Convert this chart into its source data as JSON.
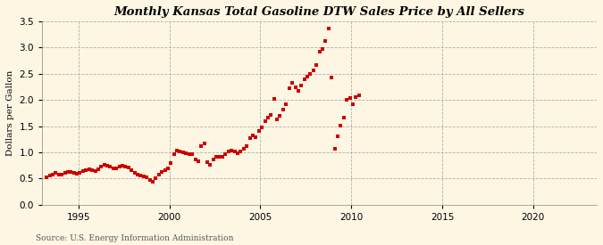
{
  "title": "Monthly Kansas Total Gasoline DTW Sales Price by All Sellers",
  "ylabel": "Dollars per Gallon",
  "source": "Source: U.S. Energy Information Administration",
  "background_color": "#fdf6e3",
  "plot_bg_color": "#fdf6e3",
  "dot_color": "#cc0000",
  "xlim": [
    1993.0,
    2023.5
  ],
  "ylim": [
    0.0,
    3.5
  ],
  "yticks": [
    0.0,
    0.5,
    1.0,
    1.5,
    2.0,
    2.5,
    3.0,
    3.5
  ],
  "xticks": [
    1995,
    2000,
    2005,
    2010,
    2015,
    2020
  ],
  "data": [
    [
      1993.25,
      0.52
    ],
    [
      1993.42,
      0.56
    ],
    [
      1993.58,
      0.58
    ],
    [
      1993.75,
      0.6
    ],
    [
      1993.92,
      0.58
    ],
    [
      1994.08,
      0.57
    ],
    [
      1994.25,
      0.6
    ],
    [
      1994.42,
      0.63
    ],
    [
      1994.58,
      0.62
    ],
    [
      1994.75,
      0.6
    ],
    [
      1994.92,
      0.59
    ],
    [
      1995.08,
      0.61
    ],
    [
      1995.25,
      0.64
    ],
    [
      1995.42,
      0.66
    ],
    [
      1995.58,
      0.68
    ],
    [
      1995.75,
      0.66
    ],
    [
      1995.92,
      0.64
    ],
    [
      1996.08,
      0.67
    ],
    [
      1996.25,
      0.73
    ],
    [
      1996.42,
      0.76
    ],
    [
      1996.58,
      0.74
    ],
    [
      1996.75,
      0.73
    ],
    [
      1996.92,
      0.69
    ],
    [
      1997.08,
      0.69
    ],
    [
      1997.25,
      0.73
    ],
    [
      1997.42,
      0.74
    ],
    [
      1997.58,
      0.73
    ],
    [
      1997.75,
      0.71
    ],
    [
      1997.92,
      0.66
    ],
    [
      1998.08,
      0.61
    ],
    [
      1998.25,
      0.58
    ],
    [
      1998.42,
      0.56
    ],
    [
      1998.58,
      0.54
    ],
    [
      1998.75,
      0.52
    ],
    [
      1998.92,
      0.48
    ],
    [
      1999.08,
      0.44
    ],
    [
      1999.25,
      0.5
    ],
    [
      1999.42,
      0.58
    ],
    [
      1999.58,
      0.62
    ],
    [
      1999.75,
      0.66
    ],
    [
      1999.92,
      0.7
    ],
    [
      2000.08,
      0.8
    ],
    [
      2000.25,
      0.97
    ],
    [
      2000.42,
      1.03
    ],
    [
      2000.58,
      1.01
    ],
    [
      2000.75,
      1.0
    ],
    [
      2000.92,
      0.99
    ],
    [
      2001.08,
      0.96
    ],
    [
      2001.25,
      0.96
    ],
    [
      2001.42,
      0.86
    ],
    [
      2001.58,
      0.83
    ],
    [
      2001.75,
      1.12
    ],
    [
      2001.92,
      1.17
    ],
    [
      2002.08,
      0.82
    ],
    [
      2002.25,
      0.76
    ],
    [
      2002.42,
      0.86
    ],
    [
      2002.58,
      0.91
    ],
    [
      2002.75,
      0.91
    ],
    [
      2002.92,
      0.91
    ],
    [
      2003.08,
      0.96
    ],
    [
      2003.25,
      1.01
    ],
    [
      2003.42,
      1.03
    ],
    [
      2003.58,
      1.01
    ],
    [
      2003.75,
      0.99
    ],
    [
      2003.92,
      1.01
    ],
    [
      2004.08,
      1.06
    ],
    [
      2004.25,
      1.12
    ],
    [
      2004.42,
      1.27
    ],
    [
      2004.58,
      1.33
    ],
    [
      2004.75,
      1.29
    ],
    [
      2004.92,
      1.4
    ],
    [
      2005.08,
      1.47
    ],
    [
      2005.25,
      1.6
    ],
    [
      2005.42,
      1.67
    ],
    [
      2005.58,
      1.72
    ],
    [
      2005.75,
      2.02
    ],
    [
      2005.92,
      1.62
    ],
    [
      2006.08,
      1.7
    ],
    [
      2006.25,
      1.82
    ],
    [
      2006.42,
      1.92
    ],
    [
      2006.58,
      2.22
    ],
    [
      2006.75,
      2.32
    ],
    [
      2006.92,
      2.24
    ],
    [
      2007.08,
      2.17
    ],
    [
      2007.25,
      2.27
    ],
    [
      2007.42,
      2.4
    ],
    [
      2007.58,
      2.44
    ],
    [
      2007.75,
      2.5
    ],
    [
      2007.92,
      2.57
    ],
    [
      2008.08,
      2.67
    ],
    [
      2008.25,
      2.92
    ],
    [
      2008.42,
      2.97
    ],
    [
      2008.58,
      3.12
    ],
    [
      2008.75,
      3.37
    ],
    [
      2008.92,
      2.42
    ],
    [
      2009.08,
      1.06
    ],
    [
      2009.25,
      1.31
    ],
    [
      2009.42,
      1.51
    ],
    [
      2009.58,
      1.66
    ],
    [
      2009.75,
      2.01
    ],
    [
      2009.92,
      2.03
    ],
    [
      2010.08,
      1.92
    ],
    [
      2010.25,
      2.06
    ],
    [
      2010.42,
      2.09
    ]
  ]
}
